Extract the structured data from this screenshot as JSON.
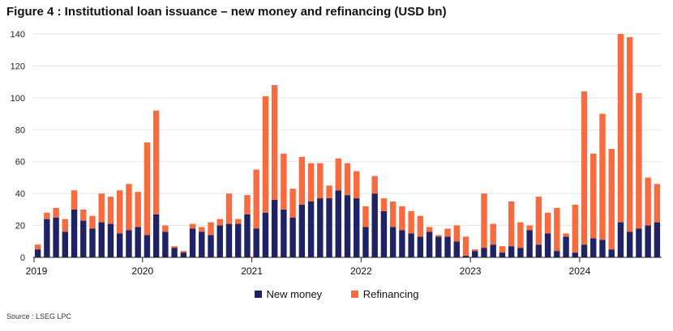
{
  "header": {
    "title": "Figure 4 : Institutional loan issuance – new money and refinancing (USD bn)"
  },
  "footer": {
    "source": "Source : LSEG LPC"
  },
  "colors": {
    "new_money": "#1f2366",
    "refinancing": "#f96a3e",
    "grid": "#e3e3e3",
    "axis": "#222222"
  },
  "chart_data": {
    "type": "bar",
    "stacked": true,
    "title": "Figure 4 : Institutional loan issuance – new money and refinancing (USD bn)",
    "xlabel": "",
    "ylabel": "",
    "ylim": [
      0,
      140
    ],
    "yticks": [
      0,
      20,
      40,
      60,
      80,
      100,
      120,
      140
    ],
    "grid": true,
    "legend": "bottom",
    "year_labels": [
      "2019",
      "2020",
      "2021",
      "2022",
      "2023",
      "2024"
    ],
    "categories": [
      "Jan 2019",
      "Feb 2019",
      "Mar 2019",
      "Apr 2019",
      "May 2019",
      "Jun 2019",
      "Jul 2019",
      "Aug 2019",
      "Sep 2019",
      "Oct 2019",
      "Nov 2019",
      "Dec 2019",
      "Jan 2020",
      "Feb 2020",
      "Mar 2020",
      "Apr 2020",
      "May 2020",
      "Jun 2020",
      "Jul 2020",
      "Aug 2020",
      "Sep 2020",
      "Oct 2020",
      "Nov 2020",
      "Dec 2020",
      "Jan 2021",
      "Feb 2021",
      "Mar 2021",
      "Apr 2021",
      "May 2021",
      "Jun 2021",
      "Jul 2021",
      "Aug 2021",
      "Sep 2021",
      "Oct 2021",
      "Nov 2021",
      "Dec 2021",
      "Jan 2022",
      "Feb 2022",
      "Mar 2022",
      "Apr 2022",
      "May 2022",
      "Jun 2022",
      "Jul 2022",
      "Aug 2022",
      "Sep 2022",
      "Oct 2022",
      "Nov 2022",
      "Dec 2022",
      "Jan 2023",
      "Feb 2023",
      "Mar 2023",
      "Apr 2023",
      "May 2023",
      "Jun 2023",
      "Jul 2023",
      "Aug 2023",
      "Sep 2023",
      "Oct 2023",
      "Nov 2023",
      "Dec 2023",
      "Jan 2024",
      "Feb 2024",
      "Mar 2024",
      "Apr 2024",
      "May 2024",
      "Jun 2024",
      "Jul 2024",
      "Aug 2024",
      "Sep 2024"
    ],
    "series": [
      {
        "name": "New money",
        "values": [
          5,
          24,
          25,
          16,
          30,
          23,
          18,
          22,
          21,
          15,
          17,
          19,
          14,
          27,
          16,
          6,
          3,
          18,
          16,
          14,
          20,
          21,
          21,
          27,
          18,
          28,
          36,
          30,
          25,
          33,
          35,
          37,
          37,
          42,
          39,
          37,
          19,
          40,
          29,
          19,
          17,
          15,
          13,
          16,
          13,
          13,
          10,
          1,
          4,
          6,
          8,
          3,
          7,
          6,
          17,
          8,
          15,
          4,
          13,
          3,
          8,
          12,
          11,
          5,
          22,
          16,
          18,
          20,
          22
        ]
      },
      {
        "name": "Refinancing",
        "values": [
          3,
          4,
          6,
          8,
          12,
          7,
          8,
          18,
          17,
          27,
          29,
          22,
          58,
          65,
          4,
          1,
          1,
          3,
          3,
          8,
          4,
          19,
          3,
          12,
          37,
          73,
          72,
          35,
          18,
          30,
          24,
          22,
          8,
          20,
          20,
          17,
          13,
          11,
          8,
          16,
          15,
          14,
          13,
          3,
          1,
          5,
          10,
          12,
          1,
          34,
          13,
          4,
          28,
          16,
          3,
          30,
          13,
          27,
          2,
          30,
          96,
          53,
          79,
          63,
          118,
          122,
          85,
          30,
          24
        ]
      }
    ]
  }
}
